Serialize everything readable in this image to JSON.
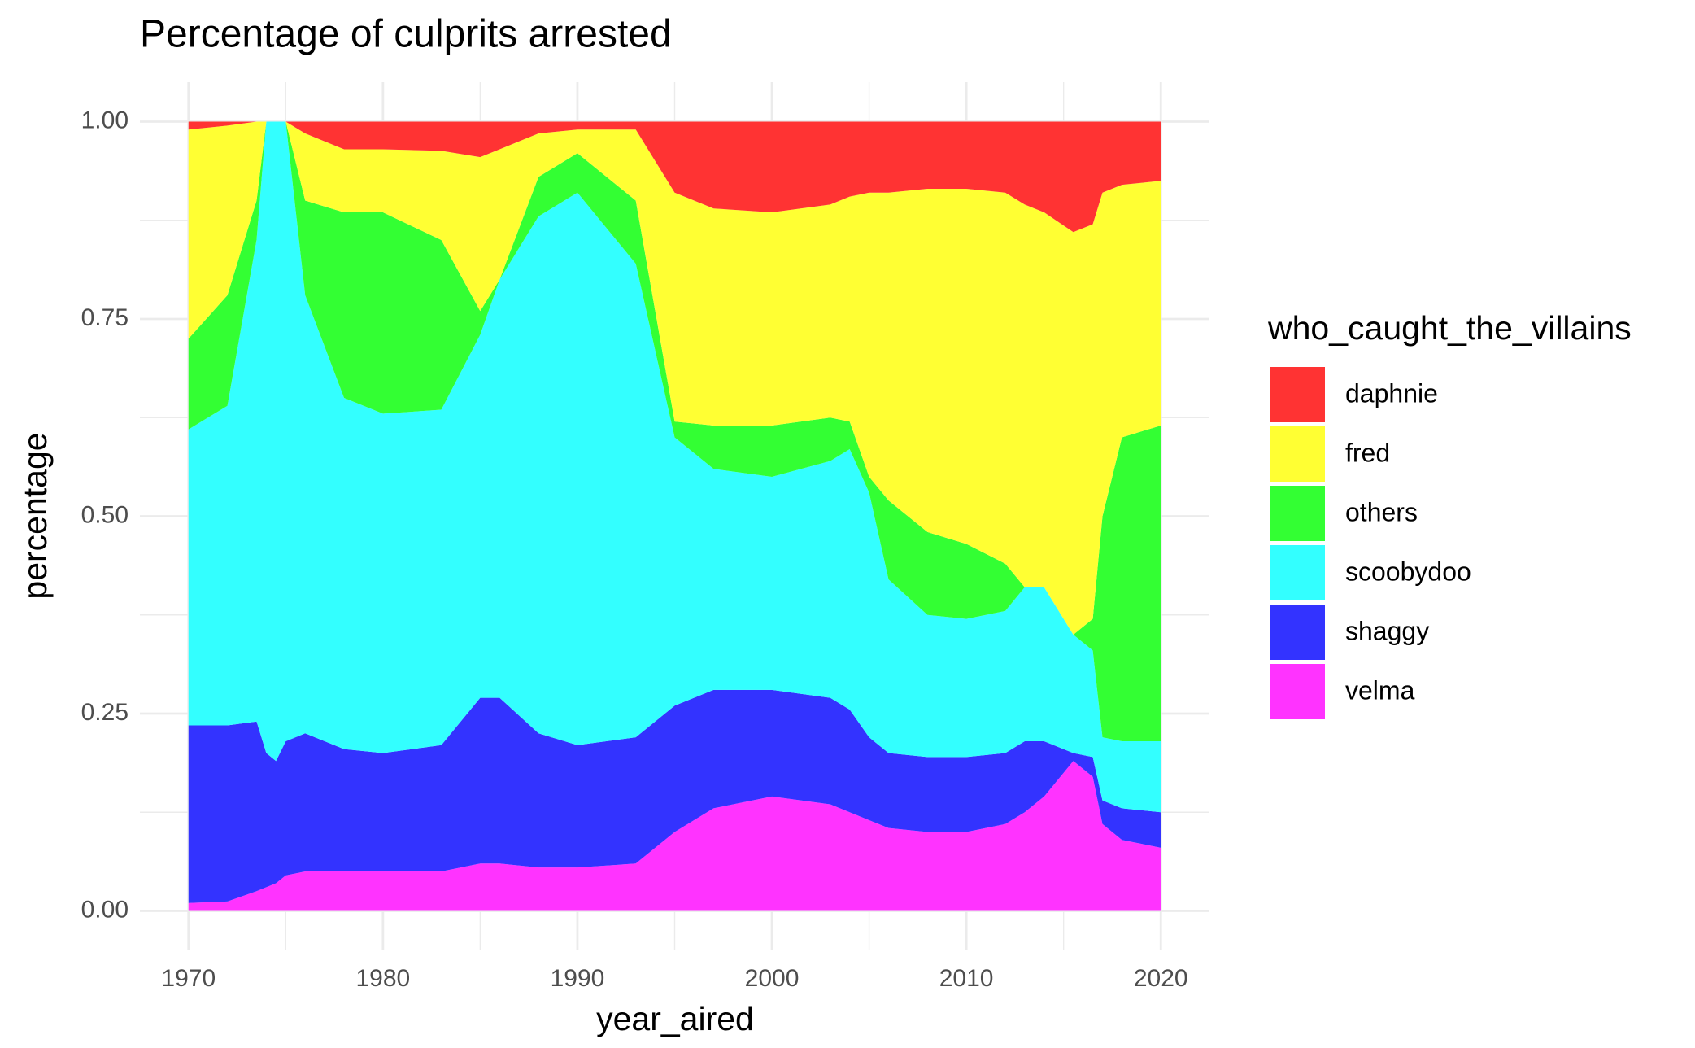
{
  "chart_data": {
    "type": "stacked_area",
    "title": "Percentage of culprits arrested",
    "x_label": "year_aired",
    "y_label": "percentage",
    "legend_title": "who_caught_the_villains",
    "x": [
      1970,
      1972,
      1973.5,
      1974,
      1974.5,
      1975,
      1976,
      1978,
      1980,
      1983,
      1985,
      1986,
      1988,
      1990,
      1993,
      1995,
      1997,
      2000,
      2003,
      2004,
      2005,
      2006,
      2008,
      2010,
      2012,
      2013,
      2014,
      2015.5,
      2016.5,
      2017,
      2018,
      2020
    ],
    "series": [
      {
        "name": "daphnie",
        "color": "#ff3333",
        "values": [
          0.01,
          0.005,
          0,
          0,
          0,
          0,
          0.015,
          0.035,
          0.035,
          0.037,
          0.045,
          0.035,
          0.015,
          0.01,
          0.01,
          0.09,
          0.11,
          0.115,
          0.105,
          0.095,
          0.09,
          0.09,
          0.085,
          0.085,
          0.09,
          0.105,
          0.115,
          0.14,
          0.13,
          0.09,
          0.08,
          0.075
        ]
      },
      {
        "name": "fred",
        "color": "#ffff33",
        "values": [
          0.265,
          0.215,
          0.1,
          0,
          0,
          0,
          0.085,
          0.08,
          0.08,
          0.113,
          0.195,
          0.165,
          0.055,
          0.03,
          0.09,
          0.29,
          0.275,
          0.27,
          0.27,
          0.285,
          0.36,
          0.39,
          0.435,
          0.45,
          0.47,
          0.485,
          0.475,
          0.51,
          0.5,
          0.41,
          0.32,
          0.31
        ]
      },
      {
        "name": "others",
        "color": "#33ff33",
        "values": [
          0.115,
          0.14,
          0.05,
          0,
          0,
          0,
          0.12,
          0.235,
          0.255,
          0.215,
          0.03,
          0,
          0.05,
          0.05,
          0.08,
          0.02,
          0.055,
          0.065,
          0.055,
          0.035,
          0.02,
          0.1,
          0.105,
          0.095,
          0.06,
          0,
          0,
          0,
          0.04,
          0.28,
          0.385,
          0.4
        ]
      },
      {
        "name": "scoobydoo",
        "color": "#33ffff",
        "values": [
          0.375,
          0.405,
          0.61,
          0.8,
          0.81,
          0.785,
          0.555,
          0.445,
          0.43,
          0.425,
          0.46,
          0.53,
          0.655,
          0.7,
          0.6,
          0.34,
          0.28,
          0.27,
          0.3,
          0.33,
          0.31,
          0.22,
          0.18,
          0.175,
          0.18,
          0.195,
          0.195,
          0.15,
          0.135,
          0.08,
          0.085,
          0.09
        ]
      },
      {
        "name": "shaggy",
        "color": "#3333ff",
        "values": [
          0.225,
          0.223,
          0.215,
          0.17,
          0.155,
          0.17,
          0.175,
          0.155,
          0.15,
          0.16,
          0.21,
          0.21,
          0.17,
          0.155,
          0.16,
          0.16,
          0.15,
          0.135,
          0.135,
          0.13,
          0.105,
          0.095,
          0.095,
          0.095,
          0.09,
          0.09,
          0.07,
          0.01,
          0.025,
          0.03,
          0.04,
          0.045
        ]
      },
      {
        "name": "velma",
        "color": "#ff33ff",
        "values": [
          0.01,
          0.012,
          0.025,
          0.03,
          0.035,
          0.045,
          0.05,
          0.05,
          0.05,
          0.05,
          0.06,
          0.06,
          0.055,
          0.055,
          0.06,
          0.1,
          0.13,
          0.145,
          0.135,
          0.125,
          0.115,
          0.105,
          0.1,
          0.1,
          0.11,
          0.125,
          0.145,
          0.19,
          0.17,
          0.11,
          0.09,
          0.08
        ]
      }
    ],
    "xlim": [
      1967.5,
      2022.5
    ],
    "ylim": [
      -0.05,
      1.05
    ],
    "xticks": [
      1970,
      1980,
      1990,
      2000,
      2010,
      2020
    ],
    "yticks": [
      {
        "value": 0,
        "label": "0.00"
      },
      {
        "value": 0.25,
        "label": "0.25"
      },
      {
        "value": 0.5,
        "label": "0.50"
      },
      {
        "value": 0.75,
        "label": "0.75"
      },
      {
        "value": 1,
        "label": "1.00"
      }
    ],
    "grid": true
  }
}
